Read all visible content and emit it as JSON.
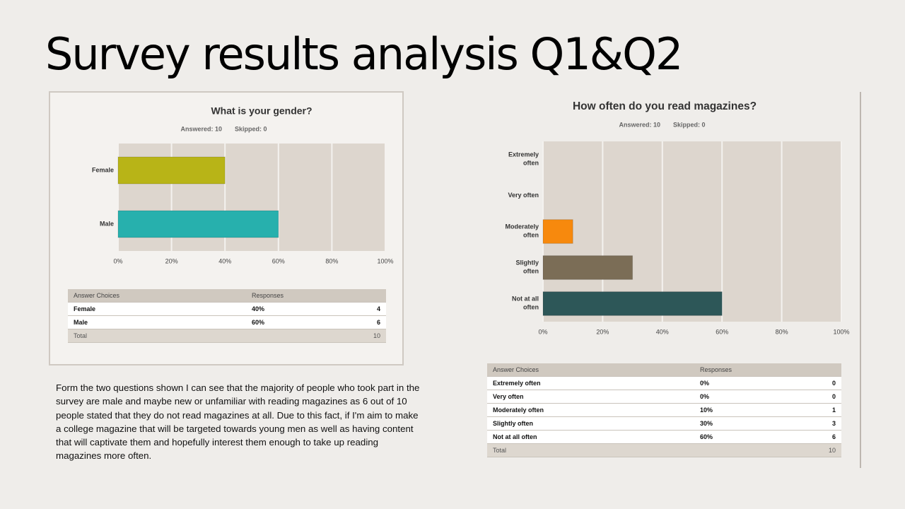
{
  "title": "Survey results analysis Q1&Q2",
  "body_text": "Form the two questions shown I can see that the majority of people who took part in the survey are male and maybe new or unfamiliar with reading magazines as 6 out of 10 people stated that they do not read magazines at all. Due to this fact, if I'm aim to make a college magazine that will be targeted towards young men as well as having content that will captivate them and hopefully interest them enough to take up reading magazines more often.",
  "chart_data": [
    {
      "type": "bar",
      "orientation": "horizontal",
      "title": "What is your gender?",
      "answered": "Answered: 10",
      "skipped": "Skipped: 0",
      "categories": [
        "Female",
        "Male"
      ],
      "values": [
        40,
        60
      ],
      "colors": [
        "#b8b417",
        "#27b0ad"
      ],
      "xlim": [
        0,
        100
      ],
      "xticks": [
        {
          "value": 0,
          "label": "0%"
        },
        {
          "value": 20,
          "label": "20%"
        },
        {
          "value": 40,
          "label": "40%"
        },
        {
          "value": 60,
          "label": "60%"
        },
        {
          "value": 80,
          "label": "80%"
        },
        {
          "value": 100,
          "label": "100%"
        }
      ],
      "grid": true,
      "table": {
        "headers": [
          "Answer Choices",
          "Responses"
        ],
        "rows": [
          [
            "Female",
            "40%",
            "4"
          ],
          [
            "Male",
            "60%",
            "6"
          ]
        ],
        "total": [
          "Total",
          "10"
        ]
      }
    },
    {
      "type": "bar",
      "orientation": "horizontal",
      "title": "How often do you read magazines?",
      "answered": "Answered: 10",
      "skipped": "Skipped: 0",
      "categories": [
        "Extremely often",
        "Very often",
        "Moderately often",
        "Slightly often",
        "Not at all often"
      ],
      "values": [
        0,
        0,
        10,
        30,
        60
      ],
      "colors": [
        "#f7890d",
        "#f7890d",
        "#f7890d",
        "#7b6d56",
        "#2d5758"
      ],
      "xlim": [
        0,
        100
      ],
      "xticks": [
        {
          "value": 0,
          "label": "0%"
        },
        {
          "value": 20,
          "label": "20%"
        },
        {
          "value": 40,
          "label": "40%"
        },
        {
          "value": 60,
          "label": "60%"
        },
        {
          "value": 80,
          "label": "80%"
        },
        {
          "value": 100,
          "label": "100%"
        }
      ],
      "grid": true,
      "table": {
        "headers": [
          "Answer Choices",
          "Responses"
        ],
        "rows": [
          [
            "Extremely often",
            "0%",
            "0"
          ],
          [
            "Very often",
            "0%",
            "0"
          ],
          [
            "Moderately often",
            "10%",
            "1"
          ],
          [
            "Slightly often",
            "30%",
            "3"
          ],
          [
            "Not at all often",
            "60%",
            "6"
          ]
        ],
        "total": [
          "Total",
          "10"
        ]
      }
    }
  ]
}
